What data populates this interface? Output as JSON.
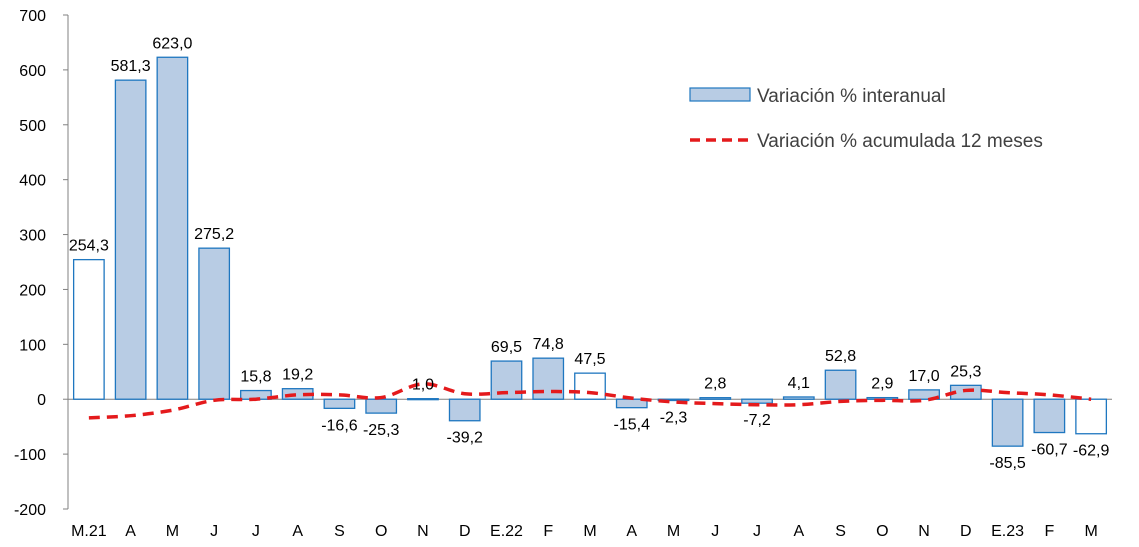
{
  "chart_data": {
    "type": "bar",
    "categories": [
      "M.21",
      "A",
      "M",
      "J",
      "J",
      "A",
      "S",
      "O",
      "N",
      "D",
      "E.22",
      "F",
      "M",
      "A",
      "M",
      "J",
      "J",
      "A",
      "S",
      "O",
      "N",
      "D",
      "E.23",
      "F",
      "M"
    ],
    "series": [
      {
        "name": "Variación % interanual",
        "type": "bar",
        "values": [
          254.3,
          581.3,
          623.0,
          275.2,
          15.8,
          19.2,
          -16.6,
          -25.3,
          1.0,
          -39.2,
          69.5,
          74.8,
          47.5,
          -15.4,
          -2.3,
          2.8,
          -7.2,
          4.1,
          52.8,
          2.9,
          17.0,
          25.3,
          -85.5,
          -60.7,
          -62.9
        ],
        "labels": [
          "254,3",
          "581,3",
          "623,0",
          "275,2",
          "15,8",
          "19,2",
          "-16,6",
          "-25,3",
          "1,0",
          "-39,2",
          "69,5",
          "74,8",
          "47,5",
          "-15,4",
          "-2,3",
          "2,8",
          "-7,2",
          "4,1",
          "52,8",
          "2,9",
          "17,0",
          "25,3",
          "-85,5",
          "-60,7",
          "-62,9"
        ],
        "hollow": [
          true,
          false,
          false,
          false,
          false,
          false,
          false,
          false,
          false,
          false,
          false,
          false,
          true,
          false,
          false,
          false,
          false,
          false,
          false,
          false,
          false,
          false,
          false,
          false,
          true
        ]
      },
      {
        "name": "Variación % acumulada 12 meses",
        "type": "line",
        "values": [
          -34,
          -30,
          -20,
          -2,
          0,
          8,
          8,
          3,
          28,
          10,
          12,
          14,
          12,
          2,
          -5,
          -8,
          -10,
          -10,
          -4,
          -2,
          -2,
          16,
          12,
          8,
          0
        ]
      }
    ],
    "ylim": [
      -200,
      700
    ],
    "yticks": [
      "-200",
      "-100",
      "0",
      "100",
      "200",
      "300",
      "400",
      "500",
      "600",
      "700"
    ],
    "ytick_values": [
      -200,
      -100,
      0,
      100,
      200,
      300,
      400,
      500,
      600,
      700
    ],
    "legend": "top-right",
    "grid": false,
    "colors": {
      "bar_fill": "#b8cce4",
      "bar_stroke": "#1f77c0",
      "hollow_fill": "#ffffff",
      "line": "#e41a1c",
      "axis": "#808080"
    }
  }
}
